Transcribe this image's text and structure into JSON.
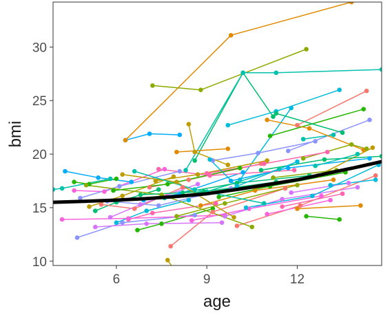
{
  "chart_data": {
    "type": "line",
    "xlabel": "age",
    "ylabel": "bmi",
    "xlim": [
      3.9,
      14.8
    ],
    "ylim": [
      9.6,
      34.2
    ],
    "xticks": [
      6,
      9,
      12
    ],
    "yticks": [
      10,
      15,
      20,
      25,
      30
    ],
    "xtick_labels": [
      "6",
      "9",
      "12"
    ],
    "ytick_labels": [
      "10",
      "15",
      "20",
      "25",
      "30"
    ],
    "grid": false,
    "legend": "none",
    "colors": {
      "axis": "#333333",
      "tick_label": "#4d4d4d",
      "title": "#1a1a1a",
      "trend": "#000000",
      "palette": [
        "#F8766D",
        "#E18A00",
        "#BE9C00",
        "#8CAB00",
        "#24B700",
        "#00BE70",
        "#00C1AB",
        "#00BBDA",
        "#00ACFC",
        "#8B93FF",
        "#D575FE",
        "#F962DD",
        "#FF65AC"
      ]
    },
    "trend": {
      "x": [
        3.9,
        5,
        6,
        7,
        8,
        9,
        10,
        11,
        12,
        13,
        14,
        14.8
      ],
      "y": [
        15.5,
        15.6,
        15.7,
        15.85,
        16.05,
        16.3,
        16.7,
        17.15,
        17.6,
        18.2,
        18.8,
        19.3
      ]
    },
    "series": [
      {
        "x": [
          6.3,
          7.1,
          8.1
        ],
        "y": [
          21.3,
          21.9,
          21.8
        ],
        "color": "#00ACFC"
      },
      {
        "x": [
          6.3,
          9.8,
          13.8
        ],
        "y": [
          21.3,
          31.1,
          34.2
        ],
        "color": "#E18A00"
      },
      {
        "x": [
          7.2,
          8.8,
          12.3
        ],
        "y": [
          26.4,
          26.0,
          29.8
        ],
        "color": "#8CAB00"
      },
      {
        "x": [
          8.6,
          10.2,
          11.2
        ],
        "y": [
          19.4,
          27.6,
          23.5
        ],
        "color": "#00BE70"
      },
      {
        "x": [
          8.3,
          10.2,
          11.3,
          14.8
        ],
        "y": [
          18.5,
          27.6,
          27.6,
          27.9
        ],
        "color": "#00C1AB"
      },
      {
        "x": [
          9.7,
          11.3,
          13.4
        ],
        "y": [
          22.7,
          24.0,
          26.0
        ],
        "color": "#00BBDA"
      },
      {
        "x": [
          10.1,
          11.8
        ],
        "y": [
          17.6,
          24.3
        ],
        "color": "#00BBDA"
      },
      {
        "x": [
          12.0,
          14.3
        ],
        "y": [
          22.7,
          25.9
        ],
        "color": "#F8766D"
      },
      {
        "x": [
          11.1,
          14.2
        ],
        "y": [
          21.7,
          24.2
        ],
        "color": "#24B700"
      },
      {
        "x": [
          11.7,
          14.4
        ],
        "y": [
          20.3,
          23.2
        ],
        "color": "#8B93FF"
      },
      {
        "x": [
          12.2,
          13.2
        ],
        "y": [
          21.4,
          21.8
        ],
        "color": "#00C1AB"
      },
      {
        "x": [
          8.0,
          9.7
        ],
        "y": [
          20.2,
          20.5
        ],
        "color": "#E18A00"
      },
      {
        "x": [
          11.0,
          12.4,
          14.2
        ],
        "y": [
          23.2,
          22.4,
          20.4
        ],
        "color": "#E18A00"
      },
      {
        "x": [
          11.3,
          13.5
        ],
        "y": [
          23.8,
          22.0
        ],
        "color": "#00BE70"
      },
      {
        "x": [
          12.2,
          13.8,
          14.3
        ],
        "y": [
          19.6,
          20.9,
          20.5
        ],
        "color": "#8CAB00"
      },
      {
        "x": [
          4.3,
          5.4,
          6.5
        ],
        "y": [
          18.4,
          17.8,
          17.4
        ],
        "color": "#00ACFC"
      },
      {
        "x": [
          3.9,
          4.2,
          5.8
        ],
        "y": [
          16.7,
          16.8,
          17.7
        ],
        "color": "#00C1AB"
      },
      {
        "x": [
          4.6,
          5.1,
          6.0
        ],
        "y": [
          17.4,
          17.2,
          17.7
        ],
        "color": "#24B700"
      },
      {
        "x": [
          4.6,
          5.6,
          7.6
        ],
        "y": [
          16.6,
          16.5,
          18.6
        ],
        "color": "#F962DD"
      },
      {
        "x": [
          4.8,
          6.1,
          8.1
        ],
        "y": [
          15.9,
          17.0,
          18.4
        ],
        "color": "#8B93FF"
      },
      {
        "x": [
          5.1,
          6.2,
          7.9
        ],
        "y": [
          15.1,
          16.1,
          17.9
        ],
        "color": "#BE9C00"
      },
      {
        "x": [
          5.3,
          6.0,
          7.4
        ],
        "y": [
          14.7,
          15.5,
          16.7
        ],
        "color": "#00BE70"
      },
      {
        "x": [
          5.5,
          6.6,
          8.2
        ],
        "y": [
          15.3,
          14.9,
          16.9
        ],
        "color": "#F8766D"
      },
      {
        "x": [
          5.8,
          6.8,
          8.7
        ],
        "y": [
          14.1,
          15.3,
          17.2
        ],
        "color": "#D575FE"
      },
      {
        "x": [
          6.0,
          7.0,
          8.4
        ],
        "y": [
          13.6,
          14.7,
          15.7
        ],
        "color": "#00BBDA"
      },
      {
        "x": [
          6.4,
          7.2,
          9.3
        ],
        "y": [
          13.9,
          14.5,
          15.4
        ],
        "color": "#FF65AC"
      },
      {
        "x": [
          6.7,
          7.5,
          9.2
        ],
        "y": [
          12.9,
          13.5,
          14.9
        ],
        "color": "#24B700"
      },
      {
        "x": [
          4.7,
          6.2,
          8.6
        ],
        "y": [
          12.2,
          13.6,
          14.3
        ],
        "color": "#8B93FF"
      },
      {
        "x": [
          4.2,
          6.4,
          9.6
        ],
        "y": [
          13.9,
          14.0,
          14.3
        ],
        "color": "#F962DD"
      },
      {
        "x": [
          5.3,
          7.0,
          9.5
        ],
        "y": [
          13.2,
          13.5,
          13.6
        ],
        "color": "#D575FE"
      },
      {
        "x": [
          6.9,
          8.1,
          10.2
        ],
        "y": [
          15.7,
          16.3,
          18.3
        ],
        "color": "#00ACFC"
      },
      {
        "x": [
          7.1,
          8.4,
          10.8
        ],
        "y": [
          16.9,
          17.6,
          19.1
        ],
        "color": "#F8766D"
      },
      {
        "x": [
          7.3,
          8.7,
          11.0
        ],
        "y": [
          17.5,
          18.1,
          19.4
        ],
        "color": "#BE9C00"
      },
      {
        "x": [
          7.6,
          9.0,
          11.4
        ],
        "y": [
          15.9,
          16.5,
          18.6
        ],
        "color": "#00C1AB"
      },
      {
        "x": [
          7.8,
          9.2,
          11.6
        ],
        "y": [
          11.4,
          14.6,
          16.8
        ],
        "color": "#F8766D"
      },
      {
        "x": [
          8.0,
          9.6,
          12.0
        ],
        "y": [
          14.2,
          15.4,
          17.1
        ],
        "color": "#8CAB00"
      },
      {
        "x": [
          8.2,
          10.0,
          12.4
        ],
        "y": [
          16.4,
          17.3,
          18.0
        ],
        "color": "#00BE70"
      },
      {
        "x": [
          8.5,
          10.4,
          12.8
        ],
        "y": [
          13.8,
          14.9,
          16.1
        ],
        "color": "#F962DD"
      },
      {
        "x": [
          8.8,
          10.6,
          13.2
        ],
        "y": [
          15.2,
          16.6,
          17.6
        ],
        "color": "#E18A00"
      },
      {
        "x": [
          9.0,
          10.9,
          13.0
        ],
        "y": [
          18.2,
          19.1,
          20.2
        ],
        "color": "#FF65AC"
      },
      {
        "x": [
          9.2,
          10.7,
          12.6
        ],
        "y": [
          19.4,
          20.1,
          21.2
        ],
        "color": "#8B93FF"
      },
      {
        "x": [
          9.4,
          11.1,
          13.6
        ],
        "y": [
          16.0,
          17.0,
          18.3
        ],
        "color": "#24B700"
      },
      {
        "x": [
          9.6,
          11.5,
          14.0
        ],
        "y": [
          14.2,
          15.8,
          16.9
        ],
        "color": "#D575FE"
      },
      {
        "x": [
          9.8,
          11.7,
          14.4
        ],
        "y": [
          17.5,
          18.7,
          19.6
        ],
        "color": "#00ACFC"
      },
      {
        "x": [
          10.0,
          12.1,
          14.6
        ],
        "y": [
          13.3,
          15.2,
          18.0
        ],
        "color": "#F8766D"
      },
      {
        "x": [
          10.3,
          12.5,
          14.7
        ],
        "y": [
          15.0,
          16.1,
          19.0
        ],
        "color": "#00BBDA"
      },
      {
        "x": [
          10.6,
          12.7,
          14.5
        ],
        "y": [
          16.8,
          18.0,
          20.6
        ],
        "color": "#BE9C00"
      },
      {
        "x": [
          10.8,
          12.9,
          14.8
        ],
        "y": [
          18.5,
          19.5,
          19.8
        ],
        "color": "#00BE70"
      },
      {
        "x": [
          11.0,
          13.1
        ],
        "y": [
          14.4,
          15.7
        ],
        "color": "#F962DD"
      },
      {
        "x": [
          11.2,
          13.3
        ],
        "y": [
          17.8,
          18.5
        ],
        "color": "#8CAB00"
      },
      {
        "x": [
          11.5,
          13.5
        ],
        "y": [
          15.1,
          16.3
        ],
        "color": "#FF65AC"
      },
      {
        "x": [
          11.8,
          13.7
        ],
        "y": [
          16.4,
          17.3
        ],
        "color": "#D575FE"
      },
      {
        "x": [
          12.0,
          14.1
        ],
        "y": [
          14.9,
          15.2
        ],
        "color": "#E18A00"
      },
      {
        "x": [
          12.3,
          13.4
        ],
        "y": [
          14.2,
          13.9
        ],
        "color": "#24B700"
      },
      {
        "x": [
          12.6,
          14.0
        ],
        "y": [
          18.9,
          20.0
        ],
        "color": "#00C1AB"
      },
      {
        "x": [
          5.0,
          7.5,
          10.5
        ],
        "y": [
          17.1,
          16.2,
          13.2
        ],
        "color": "#8CAB00"
      },
      {
        "x": [
          6.2,
          8.0,
          9.9
        ],
        "y": [
          18.1,
          17.4,
          14.1
        ],
        "color": "#BE9C00"
      },
      {
        "x": [
          6.6,
          8.6,
          10.9
        ],
        "y": [
          18.4,
          16.7,
          15.4
        ],
        "color": "#00C1AB"
      },
      {
        "x": [
          7.4,
          9.1,
          11.9
        ],
        "y": [
          18.6,
          18.0,
          18.5
        ],
        "color": "#FF65AC"
      },
      {
        "x": [
          8.4,
          8.6,
          9.7
        ],
        "y": [
          22.8,
          20.2,
          19.0
        ],
        "color": "#BE9C00"
      },
      {
        "x": [
          7.7,
          7.9
        ],
        "y": [
          10.1,
          9.3
        ],
        "color": "#BE9C00"
      },
      {
        "x": [
          9.1,
          10.0,
          12.0
        ],
        "y": [
          19.5,
          17.0,
          19.3
        ],
        "color": "#00BBDA"
      },
      {
        "x": [
          5.7,
          7.4,
          9.8
        ],
        "y": [
          15.6,
          15.2,
          16.8
        ],
        "color": "#8B93FF"
      },
      {
        "x": [
          6.8,
          8.9,
          11.3
        ],
        "y": [
          16.2,
          16.5,
          17.4
        ],
        "color": "#00BE70"
      },
      {
        "x": [
          5.9,
          7.7,
          10.1
        ],
        "y": [
          16.6,
          17.2,
          18.7
        ],
        "color": "#24B700"
      },
      {
        "x": [
          13.1,
          14.6
        ],
        "y": [
          17.1,
          17.6
        ],
        "color": "#00BBDA"
      }
    ]
  }
}
